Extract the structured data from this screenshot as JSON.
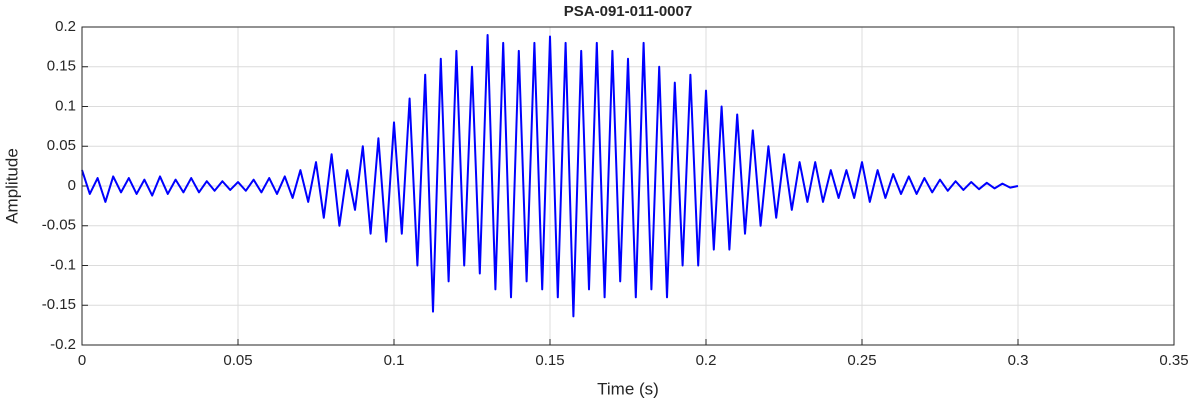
{
  "chart_data": {
    "type": "line",
    "title": "PSA-091-011-0007",
    "xlabel": "Time (s)",
    "ylabel": "Amplitude",
    "x": [
      0,
      0.0025,
      0.005,
      0.0075,
      0.01,
      0.0125,
      0.015,
      0.0175,
      0.02,
      0.0225,
      0.025,
      0.0275,
      0.03,
      0.0325,
      0.035,
      0.0375,
      0.04,
      0.0425,
      0.045,
      0.0475,
      0.05,
      0.0525,
      0.055,
      0.0575,
      0.06,
      0.0625,
      0.065,
      0.0675,
      0.07,
      0.0725,
      0.075,
      0.0775,
      0.08,
      0.0825,
      0.085,
      0.0875,
      0.09,
      0.0925,
      0.095,
      0.0975,
      0.1,
      0.1025,
      0.105,
      0.1075,
      0.11,
      0.1125,
      0.115,
      0.1175,
      0.12,
      0.1225,
      0.125,
      0.1275,
      0.13,
      0.1325,
      0.135,
      0.1375,
      0.14,
      0.1425,
      0.145,
      0.1475,
      0.15,
      0.1525,
      0.155,
      0.1575,
      0.16,
      0.1625,
      0.165,
      0.1675,
      0.17,
      0.1725,
      0.175,
      0.1775,
      0.18,
      0.1825,
      0.185,
      0.1875,
      0.19,
      0.1925,
      0.195,
      0.1975,
      0.2,
      0.2025,
      0.205,
      0.2075,
      0.21,
      0.2125,
      0.215,
      0.2175,
      0.22,
      0.2225,
      0.225,
      0.2275,
      0.23,
      0.2325,
      0.235,
      0.2375,
      0.24,
      0.2425,
      0.245,
      0.2475,
      0.25,
      0.2525,
      0.255,
      0.2575,
      0.26,
      0.2625,
      0.265,
      0.2675,
      0.27,
      0.2725,
      0.275,
      0.2775,
      0.28,
      0.2825,
      0.285,
      0.2875,
      0.29,
      0.2925,
      0.295,
      0.2975,
      0.3
    ],
    "values": [
      0.02,
      -0.01,
      0.01,
      -0.02,
      0.012,
      -0.008,
      0.01,
      -0.01,
      0.008,
      -0.012,
      0.012,
      -0.01,
      0.008,
      -0.008,
      0.01,
      -0.008,
      0.006,
      -0.006,
      0.006,
      -0.005,
      0.005,
      -0.006,
      0.008,
      -0.008,
      0.01,
      -0.01,
      0.012,
      -0.015,
      0.02,
      -0.02,
      0.03,
      -0.04,
      0.04,
      -0.05,
      0.02,
      -0.03,
      0.05,
      -0.06,
      0.06,
      -0.07,
      0.08,
      -0.06,
      0.11,
      -0.1,
      0.14,
      -0.158,
      0.16,
      -0.12,
      0.17,
      -0.1,
      0.15,
      -0.11,
      0.19,
      -0.13,
      0.18,
      -0.14,
      0.17,
      -0.12,
      0.18,
      -0.13,
      0.188,
      -0.14,
      0.18,
      -0.164,
      0.17,
      -0.13,
      0.18,
      -0.14,
      0.17,
      -0.12,
      0.16,
      -0.14,
      0.18,
      -0.13,
      0.15,
      -0.14,
      0.13,
      -0.1,
      0.14,
      -0.1,
      0.12,
      -0.08,
      0.1,
      -0.08,
      0.09,
      -0.06,
      0.07,
      -0.05,
      0.05,
      -0.04,
      0.04,
      -0.03,
      0.03,
      -0.02,
      0.03,
      -0.02,
      0.02,
      -0.015,
      0.02,
      -0.015,
      0.03,
      -0.02,
      0.02,
      -0.015,
      0.015,
      -0.01,
      0.012,
      -0.01,
      0.01,
      -0.008,
      0.008,
      -0.006,
      0.006,
      -0.005,
      0.005,
      -0.004,
      0.004,
      -0.003,
      0.003,
      -0.002,
      0
    ],
    "color": "#0000ff",
    "xlim": [
      0,
      0.35
    ],
    "xticks": [
      0,
      0.05,
      0.1,
      0.15,
      0.2,
      0.25,
      0.3,
      0.35
    ],
    "ylim": [
      -0.2,
      0.2
    ],
    "yticks": [
      -0.2,
      -0.15,
      -0.1,
      -0.05,
      0,
      0.05,
      0.1,
      0.15,
      0.2
    ],
    "grid": true
  }
}
